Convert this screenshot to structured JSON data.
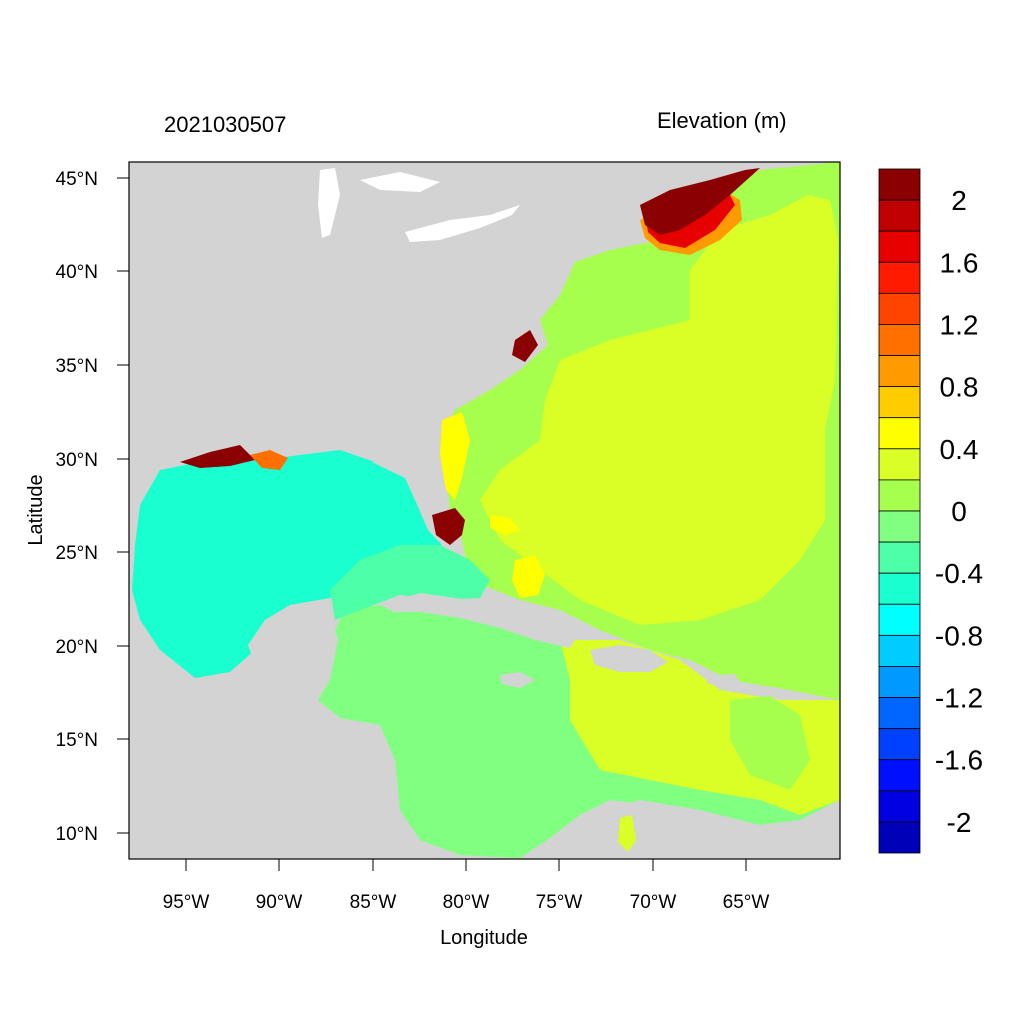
{
  "timestamp": "2021030507",
  "variable_title": "Elevation (m)",
  "axes": {
    "xlabel": "Longitude",
    "ylabel": "Latitude",
    "x_ticks": [
      "95°W",
      "90°W",
      "85°W",
      "80°W",
      "75°W",
      "70°W",
      "65°W"
    ],
    "y_ticks": [
      "45°N",
      "40°N",
      "35°N",
      "30°N",
      "25°N",
      "20°N",
      "15°N",
      "10°N"
    ],
    "lon_range": [
      -98,
      -60
    ],
    "lat_range": [
      8.5,
      46
    ]
  },
  "colorbar": {
    "labels": [
      "2",
      "1.6",
      "1.2",
      "0.8",
      "0.4",
      "0",
      "-0.4",
      "-0.8",
      "-1.2",
      "-1.6",
      "-2"
    ],
    "colors_top_to_bottom": [
      "#8b0000",
      "#c00000",
      "#e60000",
      "#ff1a00",
      "#ff4400",
      "#ff7000",
      "#ff9a00",
      "#ffcc00",
      "#ffff00",
      "#d9ff26",
      "#a6ff4d",
      "#80ff80",
      "#4dffa6",
      "#1affd0",
      "#00ffff",
      "#00ccff",
      "#0099ff",
      "#0066ff",
      "#0040ff",
      "#0010ff",
      "#0000e0",
      "#0000b8"
    ]
  },
  "colors": {
    "land": "#d3d3d3",
    "gulf_water": "#1affd0",
    "atlantic_ring": "#a6ff4d",
    "atlantic_core": "#d9ff26",
    "caribbean": "#80ff80",
    "surge_high": "#8b0000"
  }
}
